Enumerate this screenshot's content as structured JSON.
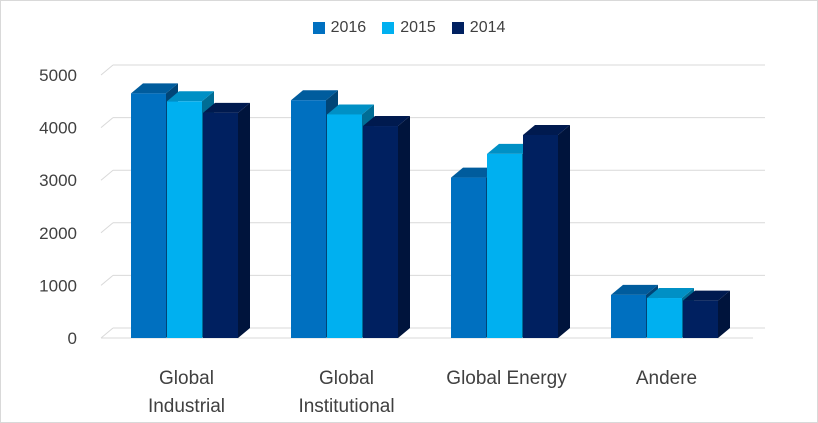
{
  "chart_data": {
    "type": "bar",
    "title": "",
    "xlabel": "",
    "ylabel": "",
    "categories": [
      [
        "Global",
        "Industrial"
      ],
      [
        "Global",
        "Institutional"
      ],
      [
        "Global Energy"
      ],
      [
        "Andere"
      ]
    ],
    "series": [
      {
        "name": "2016",
        "values": [
          4650,
          4520,
          3050,
          820
        ],
        "color": "#0070C0"
      },
      {
        "name": "2015",
        "values": [
          4500,
          4250,
          3500,
          760
        ],
        "color": "#00B0F0"
      },
      {
        "name": "2014",
        "values": [
          4280,
          4030,
          3860,
          710
        ],
        "color": "#002060"
      }
    ],
    "ylim": [
      0,
      5000
    ],
    "yticks": [
      0,
      1000,
      2000,
      3000,
      4000,
      5000
    ],
    "grid": true,
    "legend_position": "top-center"
  }
}
